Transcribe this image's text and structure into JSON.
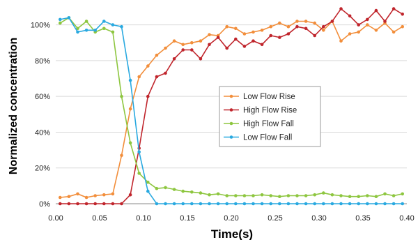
{
  "chart_data": {
    "type": "line",
    "xlabel": "Time(s)",
    "ylabel": "Normalized concentration",
    "xlim": [
      0,
      0.4
    ],
    "ylim": [
      0,
      1.1
    ],
    "x_ticks": [
      "0.00",
      "0.05",
      "0.10",
      "0.15",
      "0.20",
      "0.25",
      "0.30",
      "0.35",
      "0.40"
    ],
    "y_ticks": [
      "0%",
      "20%",
      "40%",
      "60%",
      "80%",
      "100%"
    ],
    "grid": "horizontal",
    "legend_position": "center-right",
    "series": [
      {
        "name": "Low Flow Rise",
        "color": "#f28e3b",
        "x": [
          0.005,
          0.015,
          0.025,
          0.035,
          0.045,
          0.055,
          0.065,
          0.075,
          0.085,
          0.095,
          0.105,
          0.115,
          0.125,
          0.135,
          0.145,
          0.155,
          0.165,
          0.175,
          0.185,
          0.195,
          0.205,
          0.215,
          0.225,
          0.235,
          0.245,
          0.255,
          0.265,
          0.275,
          0.285,
          0.295,
          0.305,
          0.315,
          0.325,
          0.335,
          0.345,
          0.355,
          0.365,
          0.375,
          0.385,
          0.395
        ],
        "y": [
          0.035,
          0.04,
          0.055,
          0.035,
          0.045,
          0.05,
          0.055,
          0.27,
          0.53,
          0.71,
          0.77,
          0.83,
          0.87,
          0.91,
          0.89,
          0.9,
          0.91,
          0.945,
          0.94,
          0.99,
          0.98,
          0.95,
          0.96,
          0.97,
          0.99,
          1.01,
          0.99,
          1.02,
          1.02,
          1.01,
          0.97,
          1.02,
          0.91,
          0.95,
          0.96,
          1.0,
          0.97,
          1.01,
          0.96,
          0.99
        ]
      },
      {
        "name": "High Flow Rise",
        "color": "#c0252c",
        "x": [
          0.005,
          0.015,
          0.025,
          0.035,
          0.045,
          0.055,
          0.065,
          0.075,
          0.085,
          0.095,
          0.105,
          0.115,
          0.125,
          0.135,
          0.145,
          0.155,
          0.165,
          0.175,
          0.185,
          0.195,
          0.205,
          0.215,
          0.225,
          0.235,
          0.245,
          0.255,
          0.265,
          0.275,
          0.285,
          0.295,
          0.305,
          0.315,
          0.325,
          0.335,
          0.345,
          0.355,
          0.365,
          0.375,
          0.385,
          0.395
        ],
        "y": [
          0,
          0,
          0,
          0,
          0,
          0,
          0,
          0,
          0.05,
          0.31,
          0.6,
          0.71,
          0.73,
          0.81,
          0.86,
          0.86,
          0.81,
          0.89,
          0.93,
          0.87,
          0.92,
          0.88,
          0.91,
          0.89,
          0.94,
          0.93,
          0.95,
          0.99,
          0.98,
          0.94,
          0.99,
          1.02,
          1.09,
          1.05,
          1.0,
          1.03,
          1.08,
          1.02,
          1.09,
          1.06
        ]
      },
      {
        "name": "High Flow Fall",
        "color": "#8dc63f",
        "x": [
          0.005,
          0.015,
          0.025,
          0.035,
          0.045,
          0.055,
          0.065,
          0.075,
          0.085,
          0.095,
          0.105,
          0.115,
          0.125,
          0.135,
          0.145,
          0.155,
          0.165,
          0.175,
          0.185,
          0.195,
          0.205,
          0.215,
          0.225,
          0.235,
          0.245,
          0.255,
          0.265,
          0.275,
          0.285,
          0.295,
          0.305,
          0.315,
          0.325,
          0.335,
          0.345,
          0.355,
          0.365,
          0.375,
          0.385,
          0.395
        ],
        "y": [
          1.01,
          1.04,
          0.98,
          1.02,
          0.96,
          0.98,
          0.96,
          0.6,
          0.34,
          0.17,
          0.12,
          0.085,
          0.09,
          0.08,
          0.07,
          0.065,
          0.06,
          0.05,
          0.055,
          0.045,
          0.045,
          0.045,
          0.045,
          0.05,
          0.045,
          0.04,
          0.045,
          0.045,
          0.045,
          0.05,
          0.06,
          0.05,
          0.045,
          0.04,
          0.04,
          0.045,
          0.04,
          0.055,
          0.045,
          0.055
        ]
      },
      {
        "name": "Low Flow Fall",
        "color": "#29a9e0",
        "x": [
          0.005,
          0.015,
          0.025,
          0.035,
          0.045,
          0.055,
          0.065,
          0.075,
          0.085,
          0.095,
          0.105,
          0.115,
          0.125,
          0.135,
          0.145,
          0.155,
          0.165,
          0.175,
          0.185,
          0.195,
          0.205,
          0.215,
          0.225,
          0.235,
          0.245,
          0.255,
          0.265,
          0.275,
          0.285,
          0.295,
          0.305,
          0.315,
          0.325,
          0.335,
          0.345,
          0.355,
          0.365,
          0.375,
          0.385,
          0.395
        ],
        "y": [
          1.03,
          1.04,
          0.96,
          0.97,
          0.97,
          1.02,
          1.0,
          0.99,
          0.69,
          0.29,
          0.07,
          0,
          0,
          0,
          0,
          0,
          0,
          0,
          0,
          0,
          0,
          0,
          0,
          0,
          0,
          0,
          0,
          0,
          0,
          0,
          0,
          0,
          0,
          0,
          0,
          0,
          0,
          0,
          0,
          0
        ]
      }
    ]
  }
}
